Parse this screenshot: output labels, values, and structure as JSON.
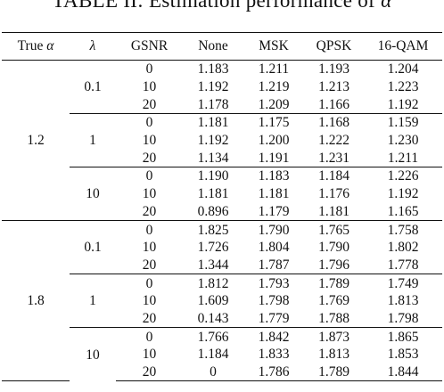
{
  "caption": {
    "prefix": "TABLE II: Estimation performance of",
    "symbol": "α"
  },
  "headers": {
    "true_alpha_text": "True ",
    "true_alpha_symbol": "α",
    "lambda_symbol": "λ",
    "gsnr": "GSNR",
    "none": "None",
    "msk": "MSK",
    "qpsk": "QPSK",
    "qam16": "16-QAM"
  },
  "groups": [
    {
      "true_alpha": "1.2",
      "lambdas": [
        {
          "lambda": "0.1",
          "rows": [
            {
              "gsnr": "0",
              "none": "1.183",
              "msk": "1.211",
              "qpsk": "1.193",
              "qam16": "1.204"
            },
            {
              "gsnr": "10",
              "none": "1.192",
              "msk": "1.219",
              "qpsk": "1.213",
              "qam16": "1.223"
            },
            {
              "gsnr": "20",
              "none": "1.178",
              "msk": "1.209",
              "qpsk": "1.166",
              "qam16": "1.192"
            }
          ]
        },
        {
          "lambda": "1",
          "rows": [
            {
              "gsnr": "0",
              "none": "1.181",
              "msk": "1.175",
              "qpsk": "1.168",
              "qam16": "1.159"
            },
            {
              "gsnr": "10",
              "none": "1.192",
              "msk": "1.200",
              "qpsk": "1.222",
              "qam16": "1.230"
            },
            {
              "gsnr": "20",
              "none": "1.134",
              "msk": "1.191",
              "qpsk": "1.231",
              "qam16": "1.211"
            }
          ]
        },
        {
          "lambda": "10",
          "rows": [
            {
              "gsnr": "0",
              "none": "1.190",
              "msk": "1.183",
              "qpsk": "1.184",
              "qam16": "1.226"
            },
            {
              "gsnr": "10",
              "none": "1.181",
              "msk": "1.181",
              "qpsk": "1.176",
              "qam16": "1.192"
            },
            {
              "gsnr": "20",
              "none": "0.896",
              "msk": "1.179",
              "qpsk": "1.181",
              "qam16": "1.165"
            }
          ]
        }
      ]
    },
    {
      "true_alpha": "1.8",
      "lambdas": [
        {
          "lambda": "0.1",
          "rows": [
            {
              "gsnr": "0",
              "none": "1.825",
              "msk": "1.790",
              "qpsk": "1.765",
              "qam16": "1.758"
            },
            {
              "gsnr": "10",
              "none": "1.726",
              "msk": "1.804",
              "qpsk": "1.790",
              "qam16": "1.802"
            },
            {
              "gsnr": "20",
              "none": "1.344",
              "msk": "1.787",
              "qpsk": "1.796",
              "qam16": "1.778"
            }
          ]
        },
        {
          "lambda": "1",
          "rows": [
            {
              "gsnr": "0",
              "none": "1.812",
              "msk": "1.793",
              "qpsk": "1.789",
              "qam16": "1.749"
            },
            {
              "gsnr": "10",
              "none": "1.609",
              "msk": "1.798",
              "qpsk": "1.769",
              "qam16": "1.813"
            },
            {
              "gsnr": "20",
              "none": "0.143",
              "msk": "1.779",
              "qpsk": "1.788",
              "qam16": "1.798"
            }
          ]
        },
        {
          "lambda": "10",
          "rows": [
            {
              "gsnr": "0",
              "none": "1.766",
              "msk": "1.842",
              "qpsk": "1.873",
              "qam16": "1.865"
            },
            {
              "gsnr": "10",
              "none": "1.184",
              "msk": "1.833",
              "qpsk": "1.813",
              "qam16": "1.853"
            },
            {
              "gsnr": "20",
              "none": "0",
              "msk": "1.786",
              "qpsk": "1.789",
              "qam16": "1.844"
            }
          ]
        }
      ]
    }
  ]
}
